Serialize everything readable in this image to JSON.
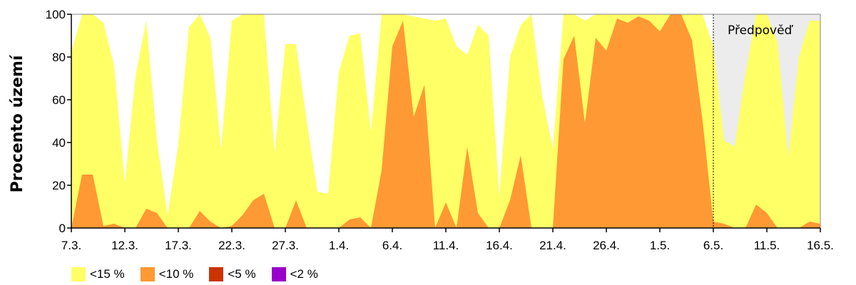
{
  "chart_data": {
    "type": "area",
    "ylabel": "Procento území",
    "ylim": [
      0,
      100
    ],
    "yticks": [
      "0",
      "20",
      "40",
      "60",
      "80",
      "100"
    ],
    "xticks": [
      "7.3.",
      "12.3.",
      "17.3.",
      "22.3.",
      "27.3.",
      "1.4.",
      "6.4.",
      "11.4.",
      "16.4.",
      "21.4.",
      "26.4.",
      "1.5.",
      "6.5.",
      "11.5.",
      "16.5."
    ],
    "x": [
      "7.3.",
      "8.3.",
      "9.3.",
      "10.3.",
      "11.3.",
      "12.3.",
      "13.3.",
      "14.3.",
      "15.3.",
      "16.3.",
      "17.3.",
      "18.3.",
      "19.3.",
      "20.3.",
      "21.3.",
      "22.3.",
      "23.3.",
      "24.3.",
      "25.3.",
      "26.3.",
      "27.3.",
      "28.3.",
      "29.3.",
      "30.3.",
      "31.3.",
      "1.4.",
      "2.4.",
      "3.4.",
      "4.4.",
      "5.4.",
      "6.4.",
      "7.4.",
      "8.4.",
      "9.4.",
      "10.4.",
      "11.4.",
      "12.4.",
      "13.4.",
      "14.4.",
      "15.4.",
      "16.4.",
      "17.4.",
      "18.4.",
      "19.4.",
      "20.4.",
      "21.4.",
      "22.4.",
      "23.4.",
      "24.4.",
      "25.4.",
      "26.4.",
      "27.4.",
      "28.4.",
      "29.4.",
      "30.4.",
      "1.5.",
      "2.5.",
      "3.5.",
      "4.5.",
      "5.5.",
      "6.5.",
      "7.5.",
      "8.5.",
      "9.5.",
      "10.5.",
      "11.5.",
      "12.5.",
      "13.5.",
      "14.5.",
      "15.5.",
      "16.5."
    ],
    "series": [
      {
        "name": "<15 %",
        "color": "#ffff66",
        "values": [
          82,
          100,
          100,
          96,
          76,
          21,
          71,
          97,
          41,
          6,
          39,
          94,
          100,
          89,
          37,
          97,
          100,
          100,
          100,
          35,
          86,
          86,
          50,
          17,
          16,
          73,
          90,
          91,
          45,
          100,
          100,
          100,
          99,
          98,
          97,
          98,
          85,
          81,
          95,
          90,
          15,
          80,
          95,
          100,
          62,
          37,
          100,
          100,
          97,
          100,
          100,
          100,
          100,
          100,
          100,
          100,
          100,
          100,
          100,
          100,
          85,
          41,
          38,
          72,
          100,
          100,
          87,
          33,
          80,
          97,
          97
        ]
      },
      {
        "name": "<10 %",
        "color": "#ff9933",
        "values": [
          0,
          25,
          25,
          1,
          2,
          0,
          0,
          9,
          7,
          0,
          0,
          0,
          8,
          3,
          0,
          1,
          6,
          13,
          16,
          0,
          0,
          13,
          0,
          0,
          0,
          0,
          4,
          5,
          0,
          27,
          85,
          97,
          52,
          67,
          0,
          12,
          0,
          38,
          7,
          0,
          0,
          13,
          34,
          0,
          0,
          0,
          79,
          90,
          49,
          89,
          83,
          98,
          96,
          99,
          97,
          92,
          100,
          100,
          88,
          50,
          3,
          2,
          0,
          0,
          11,
          7,
          0,
          0,
          0,
          3,
          2
        ]
      },
      {
        "name": "<5 %",
        "color": "#cc3300",
        "values": [
          0,
          0,
          0,
          0,
          0,
          0,
          0,
          0,
          0,
          0,
          0,
          0,
          0,
          0,
          0,
          0,
          0,
          0,
          0,
          0,
          0,
          0,
          0,
          0,
          0,
          0,
          0,
          0,
          0,
          0,
          0,
          0,
          0,
          0,
          0,
          0,
          0,
          0,
          0,
          0,
          0,
          0,
          0,
          0,
          0,
          0,
          0,
          0,
          0,
          0,
          0,
          0,
          0,
          0,
          0,
          0,
          0,
          0,
          0,
          0,
          0,
          0,
          0,
          0,
          0,
          0,
          0,
          0,
          0,
          0,
          0
        ]
      },
      {
        "name": "<2 %",
        "color": "#9900cc",
        "values": [
          0,
          0,
          0,
          0,
          0,
          0,
          0,
          0,
          0,
          0,
          0,
          0,
          0,
          0,
          0,
          0,
          0,
          0,
          0,
          0,
          0,
          0,
          0,
          0,
          0,
          0,
          0,
          0,
          0,
          0,
          0,
          0,
          0,
          0,
          0,
          0,
          0,
          0,
          0,
          0,
          0,
          0,
          0,
          0,
          0,
          0,
          0,
          0,
          0,
          0,
          0,
          0,
          0,
          0,
          0,
          0,
          0,
          0,
          0,
          0,
          0,
          0,
          0,
          0,
          0,
          0,
          0,
          0,
          0,
          0,
          0
        ]
      }
    ],
    "forecast": {
      "label": "Předpověď",
      "start": "6.5.",
      "end": "16.5.",
      "color": "#ececec"
    },
    "legend": "bottom-left",
    "grid": false
  }
}
